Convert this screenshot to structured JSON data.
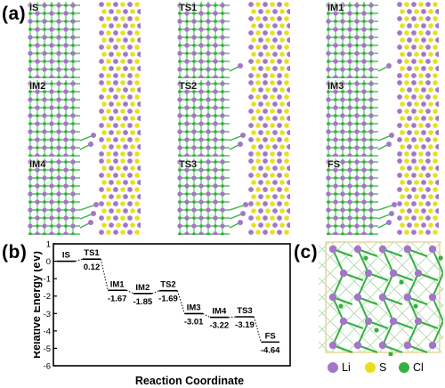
{
  "panel_labels": {
    "a": "(a)",
    "b": "(b)",
    "c": "(c)"
  },
  "structures": [
    {
      "label": "IS",
      "row": 0,
      "col": 0,
      "defect": 0
    },
    {
      "label": "TS1",
      "row": 0,
      "col": 1,
      "defect": 1
    },
    {
      "label": "IM1",
      "row": 0,
      "col": 2,
      "defect": 1
    },
    {
      "label": "IM2",
      "row": 1,
      "col": 0,
      "defect": 2
    },
    {
      "label": "TS2",
      "row": 1,
      "col": 1,
      "defect": 2
    },
    {
      "label": "IM3",
      "row": 1,
      "col": 2,
      "defect": 2
    },
    {
      "label": "IM4",
      "row": 2,
      "col": 0,
      "defect": 3
    },
    {
      "label": "TS3",
      "row": 2,
      "col": 1,
      "defect": 3
    },
    {
      "label": "FS",
      "row": 2,
      "col": 2,
      "defect": 3
    }
  ],
  "chart_data": {
    "type": "line",
    "xlabel": "Reaction Coordinate",
    "ylabel": "Relative Energy (eV)",
    "ylim": [
      -6,
      1
    ],
    "yticks": [
      -6,
      -5,
      -4,
      -3,
      -2,
      -1,
      0,
      1
    ],
    "series": [
      {
        "states": [
          "IS",
          "TS1",
          "IM1",
          "IM2",
          "TS2",
          "IM3",
          "IM4",
          "TS3",
          "FS"
        ],
        "values": [
          0,
          0.12,
          -1.67,
          -1.85,
          -1.69,
          -3.01,
          -3.22,
          -3.19,
          -4.64
        ],
        "value_labels": [
          "",
          "0.12",
          "-1.67",
          "-1.85",
          "-1.69",
          "-3.01",
          "-3.22",
          "-3.19",
          "-4.64"
        ]
      }
    ]
  },
  "legend": [
    {
      "label": "Li",
      "color": "#a476c8"
    },
    {
      "label": "S",
      "color": "#e8e01c"
    },
    {
      "label": "Cl",
      "color": "#35b043"
    }
  ],
  "colors": {
    "li": "#a476c8",
    "s": "#e8e01c",
    "cl": "#35b043",
    "cell_box": "#e0c060"
  }
}
